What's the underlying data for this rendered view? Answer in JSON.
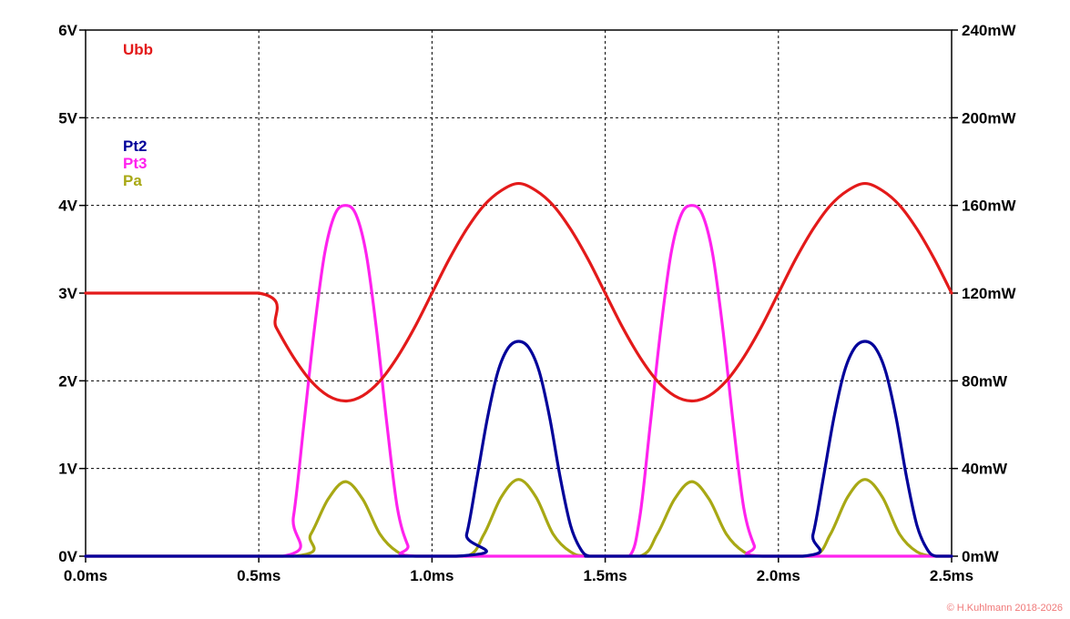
{
  "chart_data": {
    "type": "line",
    "title": "",
    "xlabel": "",
    "ylabel": "",
    "x_range": [
      0,
      2.5
    ],
    "left_range": [
      0,
      6
    ],
    "right_range": [
      0,
      240
    ],
    "grid": true,
    "x_ticks": [
      {
        "value": 0.0,
        "label": "0.0ms"
      },
      {
        "value": 0.5,
        "label": "0.5ms"
      },
      {
        "value": 1.0,
        "label": "1.0ms"
      },
      {
        "value": 1.5,
        "label": "1.5ms"
      },
      {
        "value": 2.0,
        "label": "2.0ms"
      },
      {
        "value": 2.5,
        "label": "2.5ms"
      }
    ],
    "left_ticks": [
      {
        "value": 0,
        "label": "0V"
      },
      {
        "value": 1,
        "label": "1V"
      },
      {
        "value": 2,
        "label": "2V"
      },
      {
        "value": 3,
        "label": "3V"
      },
      {
        "value": 4,
        "label": "4V"
      },
      {
        "value": 5,
        "label": "5V"
      },
      {
        "value": 6,
        "label": "6V"
      }
    ],
    "right_ticks": [
      {
        "value": 0,
        "label": "0mW"
      },
      {
        "value": 40,
        "label": "40mW"
      },
      {
        "value": 80,
        "label": "80mW"
      },
      {
        "value": 120,
        "label": "120mW"
      },
      {
        "value": 160,
        "label": "160mW"
      },
      {
        "value": 200,
        "label": "200mW"
      },
      {
        "value": 240,
        "label": "240mW"
      }
    ],
    "series": [
      {
        "name": "Ubb",
        "axis": "left",
        "color": "#e31a1a",
        "x": [
          0,
          0.5,
          0.55,
          0.6,
          0.65,
          0.7,
          0.75,
          0.8,
          0.85,
          0.9,
          0.95,
          1.0,
          1.05,
          1.1,
          1.15,
          1.2,
          1.25,
          1.3,
          1.35,
          1.4,
          1.45,
          1.5,
          1.55,
          1.6,
          1.65,
          1.7,
          1.75,
          1.8,
          1.85,
          1.9,
          1.95,
          2.0,
          2.05,
          2.1,
          2.15,
          2.2,
          2.25,
          2.3,
          2.35,
          2.4,
          2.45,
          2.5
        ],
        "values": [
          3.0,
          3.0,
          2.61,
          2.27,
          2.0,
          1.83,
          1.77,
          1.83,
          2.0,
          2.27,
          2.61,
          3.0,
          3.39,
          3.73,
          4.0,
          4.17,
          4.25,
          4.17,
          4.0,
          3.73,
          3.39,
          3.0,
          2.61,
          2.27,
          2.0,
          1.83,
          1.77,
          1.83,
          2.0,
          2.27,
          2.61,
          3.0,
          3.39,
          3.73,
          4.0,
          4.17,
          4.25,
          4.17,
          4.0,
          3.73,
          3.39,
          3.0
        ]
      },
      {
        "name": "Pt2",
        "axis": "right",
        "color": "#00009a",
        "x": [
          0,
          1.07,
          1.1,
          1.13,
          1.16,
          1.19,
          1.22,
          1.25,
          1.28,
          1.31,
          1.34,
          1.37,
          1.4,
          1.43,
          1.455,
          1.5,
          2.07,
          2.1,
          2.13,
          2.16,
          2.19,
          2.22,
          2.25,
          2.28,
          2.31,
          2.34,
          2.37,
          2.4,
          2.43,
          2.455,
          2.5
        ],
        "values": [
          0,
          0,
          10,
          36,
          63,
          84,
          95,
          98,
          95,
          84,
          63,
          36,
          14,
          3,
          0,
          0,
          0,
          10,
          36,
          63,
          84,
          95,
          98,
          95,
          84,
          63,
          36,
          14,
          3,
          0,
          0
        ]
      },
      {
        "name": "Pt3",
        "axis": "right",
        "color": "#ff22ee",
        "x": [
          0,
          0.57,
          0.6,
          0.63,
          0.66,
          0.69,
          0.72,
          0.75,
          0.78,
          0.81,
          0.84,
          0.87,
          0.9,
          0.93,
          0.955,
          1.5,
          1.57,
          1.6,
          1.63,
          1.66,
          1.69,
          1.72,
          1.75,
          1.78,
          1.81,
          1.84,
          1.87,
          1.9,
          1.93,
          1.955,
          2.5
        ],
        "values": [
          0,
          0,
          18,
          60,
          103,
          138,
          156,
          160,
          156,
          138,
          103,
          60,
          22,
          5,
          0,
          0,
          0,
          18,
          60,
          103,
          138,
          156,
          160,
          156,
          138,
          103,
          60,
          22,
          5,
          0,
          0
        ]
      },
      {
        "name": "Pa",
        "axis": "right",
        "color": "#a8a814",
        "x": [
          0,
          0.6,
          0.65,
          0.7,
          0.75,
          0.8,
          0.85,
          0.9,
          0.95,
          1.1,
          1.15,
          1.2,
          1.25,
          1.3,
          1.35,
          1.4,
          1.45,
          1.6,
          1.65,
          1.7,
          1.75,
          1.8,
          1.85,
          1.9,
          1.95,
          2.1,
          2.15,
          2.2,
          2.25,
          2.3,
          2.35,
          2.4,
          2.45,
          2.5
        ],
        "values": [
          0,
          0,
          10,
          26,
          34,
          26,
          10,
          2,
          0,
          0,
          10,
          27,
          35,
          27,
          10,
          2,
          0,
          0,
          10,
          26,
          34,
          26,
          10,
          2,
          0,
          0,
          10,
          27,
          35,
          27,
          10,
          2,
          0,
          0
        ]
      }
    ],
    "legend": [
      {
        "label": "Ubb",
        "color": "#e31a1a"
      },
      {
        "label": "Pt2",
        "color": "#00009a"
      },
      {
        "label": "Pt3",
        "color": "#ff22ee"
      },
      {
        "label": "Pa",
        "color": "#a8a814"
      }
    ],
    "copyright": "© H.Kuhlmann 2018-2026",
    "copyright_color": "#f07878"
  }
}
